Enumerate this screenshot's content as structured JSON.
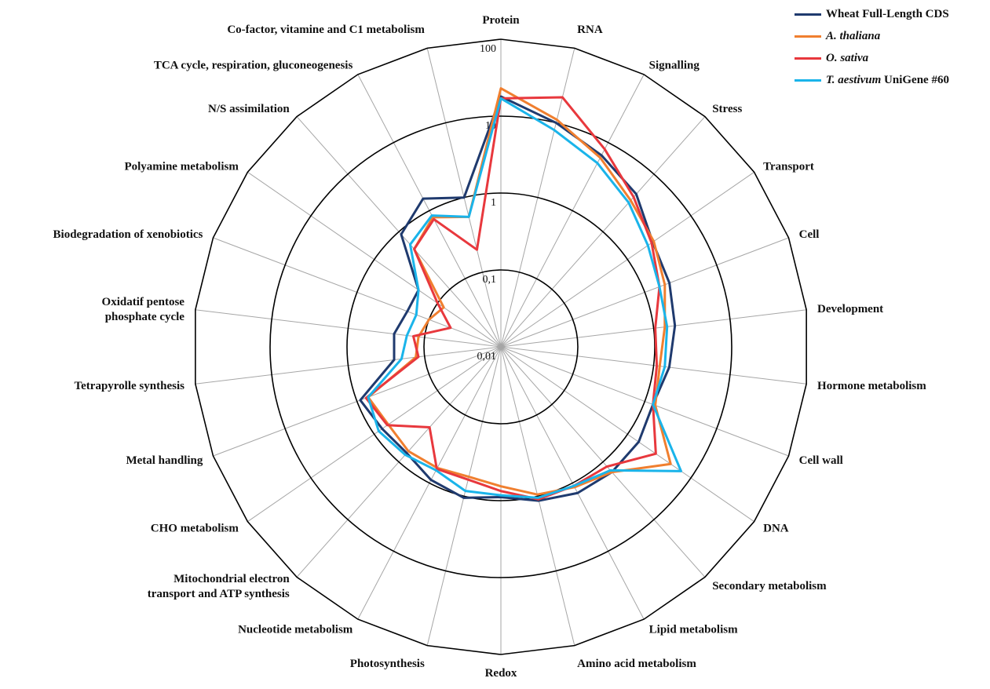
{
  "chart_data": {
    "type": "radar",
    "scale": "log",
    "rlim": [
      0.01,
      100
    ],
    "ticks": [
      {
        "value": 0.01,
        "label": "0,01"
      },
      {
        "value": 0.1,
        "label": "0,1"
      },
      {
        "value": 1,
        "label": "1"
      },
      {
        "value": 10,
        "label": "10"
      },
      {
        "value": 100,
        "label": "100"
      }
    ],
    "legend_position": "top-right",
    "categories": [
      "Protein",
      "RNA",
      "Signalling",
      "Stress",
      "Transport",
      "Cell",
      "Development",
      "Hormone metabolism",
      "Cell wall",
      "DNA",
      "Secondary metabolism",
      "Lipid metabolism",
      "Amino acid metabolism",
      "Redox",
      "Photosynthesis",
      "Nucleotide metabolism",
      "Mitochondrial electron transport and ATP synthesis",
      "CHO metabolism",
      "Metal handling",
      "Tetrapyrolle synthesis",
      "Oxidatif pentose phosphate cycle",
      "Biodegradation of xenobiotics",
      "Polyamine metabolism",
      "N/S assimilation",
      "TCA cycle, respiration, gluconeogenesis",
      "Co-factor, vitamine and C1 metabolism"
    ],
    "series": [
      {
        "name": "Wheat Full-Length CDS",
        "name_parts": [
          {
            "text": "Wheat Full-Length CDS",
            "italic": false
          }
        ],
        "color": "#1f3a6e",
        "values": [
          18,
          10,
          6.5,
          4.5,
          2.5,
          2.2,
          1.9,
          1.6,
          1.3,
          1.5,
          1.5,
          1.4,
          1.15,
          0.9,
          1.05,
          0.9,
          0.7,
          0.75,
          0.9,
          0.25,
          0.25,
          0.2,
          0.2,
          0.9,
          1.5,
          1.0
        ]
      },
      {
        "name": "A. thaliana",
        "name_parts": [
          {
            "text": "A. thaliana",
            "italic": true
          }
        ],
        "color": "#f07f2f",
        "values": [
          23,
          11,
          6,
          3.5,
          2.6,
          1.9,
          1.4,
          1.2,
          1.4,
          4.8,
          1.5,
          1.15,
          0.95,
          0.65,
          0.55,
          0.6,
          0.65,
          0.6,
          0.7,
          0.13,
          0.12,
          0.1,
          0.08,
          0.5,
          0.8,
          0.55
        ]
      },
      {
        "name": "O. sativa",
        "name_parts": [
          {
            "text": "O. sativa",
            "italic": true
          }
        ],
        "color": "#e8383d",
        "values": [
          17,
          22,
          8,
          4,
          2.4,
          1.6,
          1.05,
          1.1,
          1.3,
          2.8,
          1.2,
          1.1,
          1.1,
          0.75,
          0.6,
          0.62,
          0.25,
          0.62,
          0.75,
          0.12,
          0.14,
          0.05,
          0.1,
          0.5,
          0.75,
          0.2
        ]
      },
      {
        "name": "T. aestivum UniGene #60",
        "name_parts": [
          {
            "text": "T. aestivum",
            "italic": true
          },
          {
            "text": " UniGene #60",
            "italic": false
          }
        ],
        "color": "#1ab4ea",
        "values": [
          17,
          8,
          5,
          3.2,
          2.1,
          1.6,
          1.5,
          1.4,
          1.3,
          7,
          1.4,
          1.1,
          1.05,
          0.85,
          0.85,
          0.65,
          0.75,
          0.85,
          0.7,
          0.2,
          0.17,
          0.15,
          0.2,
          0.6,
          0.85,
          0.55
        ]
      }
    ]
  }
}
